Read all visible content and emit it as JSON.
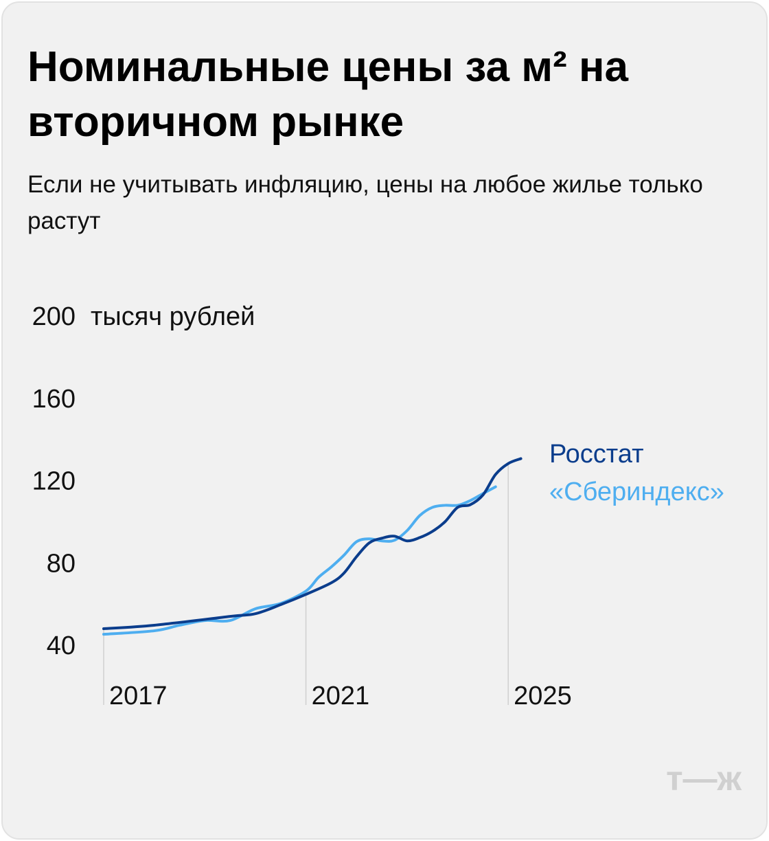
{
  "logo": "т—ж",
  "chart_data": {
    "type": "line",
    "title": "Номинальные цены за м² на вторичном рынке",
    "subtitle": "Если не учитывать инфляцию, цены на любое жилье только растут",
    "y_label": "тысяч рублей",
    "xlim": [
      2017,
      2025.5
    ],
    "ylim": [
      40,
      200
    ],
    "xticks": [
      2017,
      2021,
      2025
    ],
    "yticks": [
      40,
      80,
      120,
      160,
      200
    ],
    "series": [
      {
        "name": "Росстат",
        "color": "#0b3d8c",
        "x": [
          2017,
          2018,
          2019.5,
          2020,
          2020.5,
          2021,
          2021.5,
          2021.75,
          2022,
          2022.25,
          2022.5,
          2022.75,
          2023,
          2023.25,
          2023.5,
          2023.75,
          2024,
          2024.25,
          2024.5,
          2024.75,
          2025,
          2025.25
        ],
        "values": [
          49,
          50.7,
          55,
          56.3,
          60.7,
          65.7,
          71.3,
          76,
          84,
          90.7,
          93,
          94,
          91.7,
          93.3,
          96.3,
          101,
          108,
          109.3,
          114,
          124,
          129.3,
          131.7
        ]
      },
      {
        "name": "«Сбериндекс»",
        "color": "#4eaef0",
        "x": [
          2017,
          2018,
          2018.5,
          2019,
          2019.5,
          2020,
          2020.5,
          2021,
          2021.25,
          2021.5,
          2021.75,
          2022,
          2022.25,
          2022.5,
          2022.75,
          2023,
          2023.25,
          2023.5,
          2023.75,
          2024,
          2024.25,
          2024.5,
          2024.75
        ],
        "values": [
          46.3,
          48,
          50.7,
          53,
          53,
          58.7,
          61.3,
          67.3,
          74,
          79,
          84.7,
          91.3,
          92.7,
          91.7,
          92,
          96.7,
          104,
          108,
          109,
          109,
          111.3,
          114.7,
          118
        ]
      }
    ]
  }
}
